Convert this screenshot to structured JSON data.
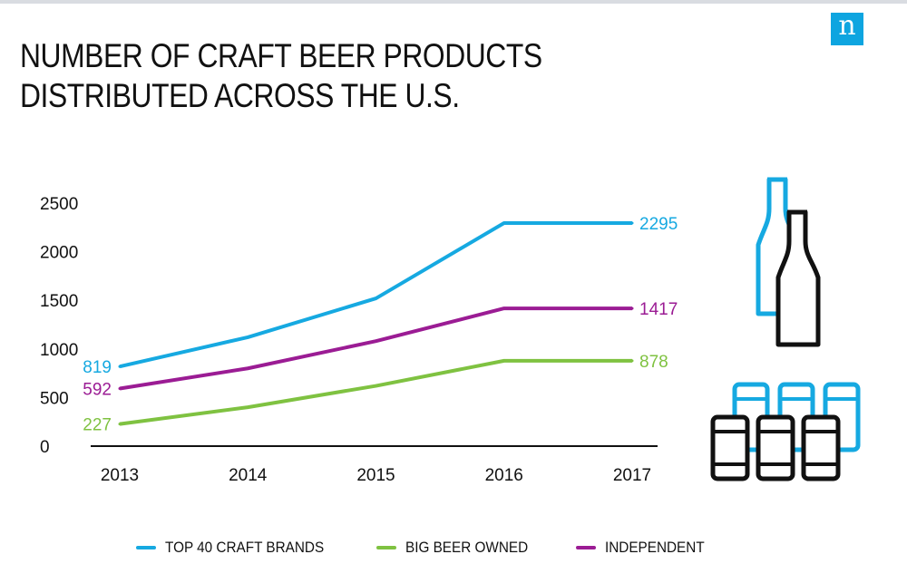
{
  "brand": {
    "logo_letter": "n",
    "logo_color": "#0ea5e0"
  },
  "title": "NUMBER OF CRAFT BEER PRODUCTS DISTRIBUTED ACROSS THE U.S.",
  "chart_data": {
    "type": "line",
    "x": [
      "2013",
      "2014",
      "2015",
      "2016",
      "2017"
    ],
    "y_ticks": [
      "0",
      "500",
      "1000",
      "1500",
      "2000",
      "2500"
    ],
    "ylim": [
      0,
      2500
    ],
    "grid": false,
    "legend_position": "bottom",
    "series": [
      {
        "name": "TOP 40 CRAFT BRANDS",
        "color": "#16a9e1",
        "values": [
          819,
          1120,
          1520,
          2295,
          2295
        ],
        "start_label": "819",
        "end_label": "2295"
      },
      {
        "name": "BIG BEER OWNED",
        "color": "#7fc241",
        "values": [
          227,
          400,
          620,
          878,
          878
        ],
        "start_label": "227",
        "end_label": "878"
      },
      {
        "name": "INDEPENDENT",
        "color": "#9b1c94",
        "values": [
          592,
          800,
          1080,
          1417,
          1417
        ],
        "start_label": "592",
        "end_label": "1417"
      }
    ]
  },
  "icons": [
    "bottle-icon",
    "can-icon"
  ]
}
